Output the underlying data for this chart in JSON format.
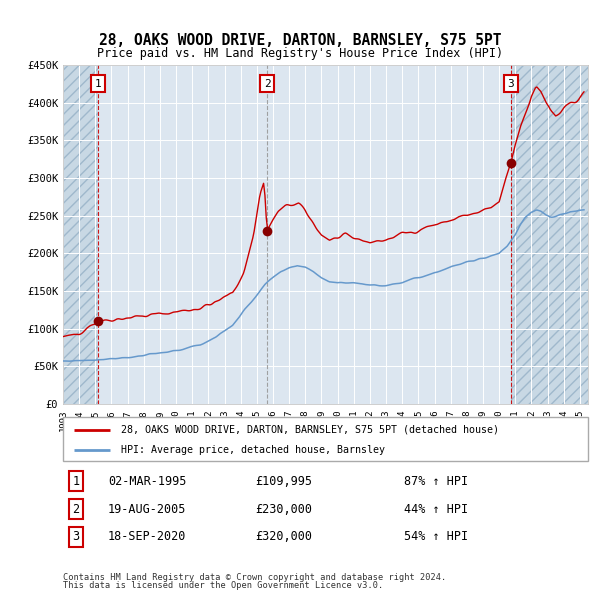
{
  "title1": "28, OAKS WOOD DRIVE, DARTON, BARNSLEY, S75 5PT",
  "title2": "Price paid vs. HM Land Registry's House Price Index (HPI)",
  "hpi_color": "#6699cc",
  "price_color": "#cc0000",
  "sale_marker_color": "#880000",
  "bg_color": "#dce6f0",
  "grid_color": "#ffffff",
  "sale1": {
    "date": "02-MAR-1995",
    "price": 109995,
    "label": "1",
    "pct": "87% ↑ HPI",
    "x_year": 1995.17
  },
  "sale2": {
    "date": "19-AUG-2005",
    "price": 230000,
    "label": "2",
    "pct": "44% ↑ HPI",
    "x_year": 2005.63
  },
  "sale3": {
    "date": "18-SEP-2020",
    "price": 320000,
    "label": "3",
    "pct": "54% ↑ HPI",
    "x_year": 2020.72
  },
  "legend1": "28, OAKS WOOD DRIVE, DARTON, BARNSLEY, S75 5PT (detached house)",
  "legend2": "HPI: Average price, detached house, Barnsley",
  "footer1": "Contains HM Land Registry data © Crown copyright and database right 2024.",
  "footer2": "This data is licensed under the Open Government Licence v3.0.",
  "ylim": [
    0,
    450000
  ],
  "xlim_start": 1993.0,
  "xlim_end": 2025.5,
  "prop_key_x": [
    1993.0,
    1993.5,
    1994.0,
    1994.5,
    1995.17,
    1995.8,
    1996.5,
    1997.5,
    1998.5,
    1999.5,
    2000.5,
    2001.5,
    2002.5,
    2003.5,
    2004.2,
    2004.8,
    2005.2,
    2005.45,
    2005.63,
    2005.9,
    2006.3,
    2006.8,
    2007.2,
    2007.6,
    2008.0,
    2008.5,
    2009.0,
    2009.5,
    2010.0,
    2010.5,
    2011.0,
    2011.5,
    2012.0,
    2012.5,
    2013.0,
    2013.5,
    2014.0,
    2014.5,
    2015.0,
    2015.5,
    2016.0,
    2016.5,
    2017.0,
    2017.5,
    2018.0,
    2018.5,
    2019.0,
    2019.5,
    2020.0,
    2020.5,
    2020.72,
    2021.0,
    2021.3,
    2021.6,
    2022.0,
    2022.3,
    2022.6,
    2022.9,
    2023.2,
    2023.5,
    2023.8,
    2024.1,
    2024.4,
    2024.7,
    2025.0,
    2025.3
  ],
  "prop_key_y": [
    88000,
    90000,
    95000,
    103000,
    109995,
    112000,
    114000,
    116000,
    118000,
    121000,
    124000,
    128000,
    135000,
    148000,
    175000,
    225000,
    280000,
    295000,
    230000,
    240000,
    255000,
    262000,
    265000,
    265000,
    255000,
    240000,
    225000,
    218000,
    220000,
    222000,
    220000,
    218000,
    215000,
    216000,
    218000,
    222000,
    226000,
    228000,
    232000,
    235000,
    238000,
    240000,
    244000,
    248000,
    250000,
    252000,
    255000,
    260000,
    268000,
    305000,
    320000,
    345000,
    368000,
    385000,
    410000,
    420000,
    415000,
    400000,
    388000,
    382000,
    386000,
    392000,
    398000,
    402000,
    408000,
    412000
  ],
  "hpi_key_x": [
    1993.0,
    1993.5,
    1994.0,
    1994.5,
    1995.0,
    1995.5,
    1996.0,
    1996.5,
    1997.0,
    1997.5,
    1998.0,
    1998.5,
    1999.0,
    1999.5,
    2000.0,
    2000.5,
    2001.0,
    2001.5,
    2002.0,
    2002.5,
    2003.0,
    2003.5,
    2004.0,
    2004.5,
    2005.0,
    2005.5,
    2006.0,
    2006.5,
    2007.0,
    2007.5,
    2008.0,
    2008.5,
    2009.0,
    2009.5,
    2010.0,
    2010.5,
    2011.0,
    2011.5,
    2012.0,
    2012.5,
    2013.0,
    2013.5,
    2014.0,
    2014.5,
    2015.0,
    2015.5,
    2016.0,
    2016.5,
    2017.0,
    2017.5,
    2018.0,
    2018.5,
    2019.0,
    2019.5,
    2020.0,
    2020.5,
    2021.0,
    2021.3,
    2021.6,
    2022.0,
    2022.3,
    2022.6,
    2022.9,
    2023.2,
    2023.5,
    2023.8,
    2024.1,
    2024.4,
    2024.7,
    2025.0,
    2025.3
  ],
  "hpi_key_y": [
    57000,
    57500,
    58000,
    58500,
    59000,
    59800,
    60500,
    61200,
    62000,
    63000,
    64500,
    66000,
    67500,
    69000,
    71000,
    73500,
    76000,
    79000,
    84000,
    90000,
    97000,
    105000,
    118000,
    132000,
    145000,
    158000,
    168000,
    175000,
    180000,
    184000,
    182000,
    176000,
    168000,
    163000,
    161000,
    161000,
    161000,
    160000,
    158000,
    157000,
    158000,
    160000,
    162000,
    165000,
    168000,
    171000,
    175000,
    178000,
    182000,
    185000,
    188000,
    191000,
    194000,
    197000,
    200000,
    210000,
    225000,
    238000,
    248000,
    255000,
    258000,
    255000,
    250000,
    248000,
    249000,
    251000,
    253000,
    255000,
    256000,
    257000,
    258000
  ]
}
